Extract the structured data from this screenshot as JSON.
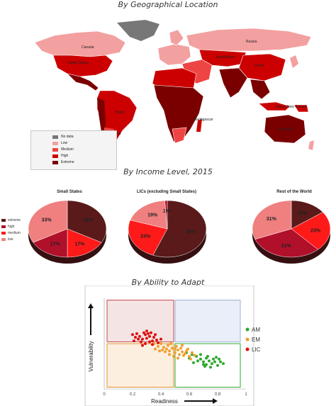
{
  "sections": {
    "geo_title": "By Geographical Location",
    "income_title": "By Income Level, 2015",
    "adapt_title": "By Ability to Adapt"
  },
  "map": {
    "legend": [
      {
        "label": "No data",
        "color": "#777777"
      },
      {
        "label": "Low",
        "color": "#f3a0a0"
      },
      {
        "label": "Medium",
        "color": "#ee4444"
      },
      {
        "label": "High",
        "color": "#cc0000"
      },
      {
        "label": "Extreme",
        "color": "#7a0000"
      }
    ],
    "country_labels": {
      "canada": "Canada",
      "us": "United States",
      "russia": "Russia",
      "kazakhstan": "Kazakhstan",
      "china": "China",
      "brazil": "Brazil",
      "argentina": "Argentina",
      "png": "Papua New Guinea",
      "australia": "Australia",
      "madagascar": "Madagascar"
    }
  },
  "pie_legend": [
    {
      "label": "extreme",
      "color": "#5a1a1a"
    },
    {
      "label": "high",
      "color": "#b0102a"
    },
    {
      "label": "medium",
      "color": "#ff1a1a"
    },
    {
      "label": "low",
      "color": "#f08080"
    }
  ],
  "chart_data": [
    {
      "type": "pie",
      "title": "Small States",
      "labels": [
        "extreme",
        "medium",
        "high",
        "low"
      ],
      "values": [
        33,
        17,
        17,
        33
      ],
      "value_labels": [
        "33%",
        "17%",
        "17%",
        "33%"
      ],
      "colors": [
        "#5a1a1a",
        "#ff1a1a",
        "#b0102a",
        "#f08080"
      ]
    },
    {
      "type": "pie",
      "title": "LICs (excluding Small States)",
      "labels": [
        "extreme",
        "medium",
        "low",
        "high"
      ],
      "values": [
        56,
        24,
        19,
        1
      ],
      "value_labels": [
        "56%",
        "24%",
        "19%",
        "1%"
      ],
      "colors": [
        "#5a1a1a",
        "#ff1a1a",
        "#f08080",
        "#b0102a"
      ]
    },
    {
      "type": "pie",
      "title": "Rest of the World",
      "labels": [
        "extreme",
        "medium",
        "high",
        "low"
      ],
      "values": [
        15,
        23,
        31,
        31
      ],
      "value_labels": [
        "15%",
        "23%",
        "31%",
        "31%"
      ],
      "colors": [
        "#5a1a1a",
        "#ff1a1a",
        "#b0102a",
        "#f08080"
      ]
    },
    {
      "type": "scatter",
      "xlabel": "Readiness",
      "ylabel": "Vulnerability",
      "xlim": [
        0,
        1
      ],
      "ylim": [
        0,
        1
      ],
      "xticks": [
        "0",
        "0.2",
        "0.4",
        "0.6",
        "0.8",
        "1"
      ],
      "legend_position": "right",
      "series": [
        {
          "name": "AM",
          "color": "#2eaa2e",
          "points": [
            [
              0.62,
              0.38
            ],
            [
              0.65,
              0.36
            ],
            [
              0.68,
              0.33
            ],
            [
              0.7,
              0.3
            ],
            [
              0.72,
              0.34
            ],
            [
              0.74,
              0.31
            ],
            [
              0.76,
              0.28
            ],
            [
              0.78,
              0.3
            ],
            [
              0.8,
              0.26
            ],
            [
              0.82,
              0.3
            ],
            [
              0.84,
              0.28
            ],
            [
              0.66,
              0.31
            ],
            [
              0.7,
              0.27
            ],
            [
              0.73,
              0.36
            ],
            [
              0.75,
              0.24
            ],
            [
              0.77,
              0.33
            ],
            [
              0.6,
              0.34
            ],
            [
              0.63,
              0.29
            ],
            [
              0.79,
              0.35
            ],
            [
              0.68,
              0.38
            ],
            [
              0.72,
              0.27
            ],
            [
              0.81,
              0.33
            ],
            [
              0.58,
              0.4
            ],
            [
              0.71,
              0.25
            ]
          ]
        },
        {
          "name": "EM",
          "color": "#f0a030",
          "points": [
            [
              0.4,
              0.5
            ],
            [
              0.42,
              0.46
            ],
            [
              0.44,
              0.44
            ],
            [
              0.45,
              0.48
            ],
            [
              0.46,
              0.42
            ],
            [
              0.48,
              0.45
            ],
            [
              0.5,
              0.4
            ],
            [
              0.52,
              0.43
            ],
            [
              0.53,
              0.38
            ],
            [
              0.55,
              0.41
            ],
            [
              0.56,
              0.37
            ],
            [
              0.58,
              0.42
            ],
            [
              0.6,
              0.36
            ],
            [
              0.62,
              0.4
            ],
            [
              0.38,
              0.47
            ],
            [
              0.36,
              0.44
            ],
            [
              0.47,
              0.5
            ],
            [
              0.51,
              0.47
            ],
            [
              0.54,
              0.45
            ],
            [
              0.57,
              0.39
            ],
            [
              0.49,
              0.36
            ],
            [
              0.43,
              0.41
            ],
            [
              0.59,
              0.44
            ],
            [
              0.35,
              0.5
            ],
            [
              0.41,
              0.43
            ],
            [
              0.46,
              0.38
            ],
            [
              0.52,
              0.34
            ],
            [
              0.55,
              0.48
            ],
            [
              0.5,
              0.44
            ],
            [
              0.61,
              0.33
            ],
            [
              0.64,
              0.37
            ],
            [
              0.39,
              0.42
            ]
          ]
        },
        {
          "name": "LIC",
          "color": "#dd1111",
          "points": [
            [
              0.2,
              0.6
            ],
            [
              0.22,
              0.57
            ],
            [
              0.25,
              0.58
            ],
            [
              0.27,
              0.55
            ],
            [
              0.29,
              0.6
            ],
            [
              0.3,
              0.56
            ],
            [
              0.32,
              0.58
            ],
            [
              0.34,
              0.53
            ],
            [
              0.35,
              0.57
            ],
            [
              0.37,
              0.54
            ],
            [
              0.28,
              0.62
            ],
            [
              0.31,
              0.61
            ],
            [
              0.33,
              0.62
            ],
            [
              0.26,
              0.52
            ],
            [
              0.24,
              0.55
            ],
            [
              0.36,
              0.6
            ],
            [
              0.38,
              0.51
            ],
            [
              0.29,
              0.5
            ],
            [
              0.32,
              0.52
            ],
            [
              0.21,
              0.53
            ],
            [
              0.34,
              0.49
            ],
            [
              0.4,
              0.55
            ],
            [
              0.27,
              0.48
            ],
            [
              0.3,
              0.64
            ],
            [
              0.23,
              0.61
            ]
          ]
        }
      ]
    }
  ]
}
